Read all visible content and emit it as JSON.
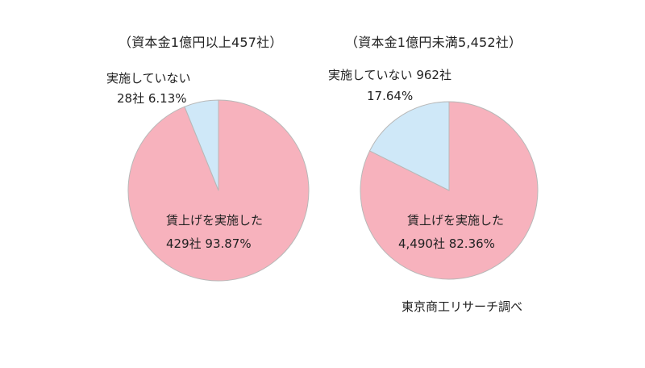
{
  "chart_data": [
    {
      "type": "pie",
      "title": "（資本金1億円以上457社）",
      "slices": [
        {
          "label": "賃上げを実施した",
          "detail": "429社 93.87%",
          "value": 93.87,
          "color": "#f7b2bd"
        },
        {
          "label": "実施していない",
          "detail": "28社 6.13%",
          "value": 6.13,
          "color": "#cfe8f8"
        }
      ]
    },
    {
      "type": "pie",
      "title": "（資本金1億円未満5,452社）",
      "slices": [
        {
          "label": "賃上げを実施した",
          "detail": "4,490社 82.36%",
          "value": 82.36,
          "color": "#f7b2bd"
        },
        {
          "label": "実施していない 962社",
          "detail": "17.64%",
          "value": 17.64,
          "color": "#cfe8f8"
        }
      ]
    }
  ],
  "source": "東京商工リサーチ調べ"
}
